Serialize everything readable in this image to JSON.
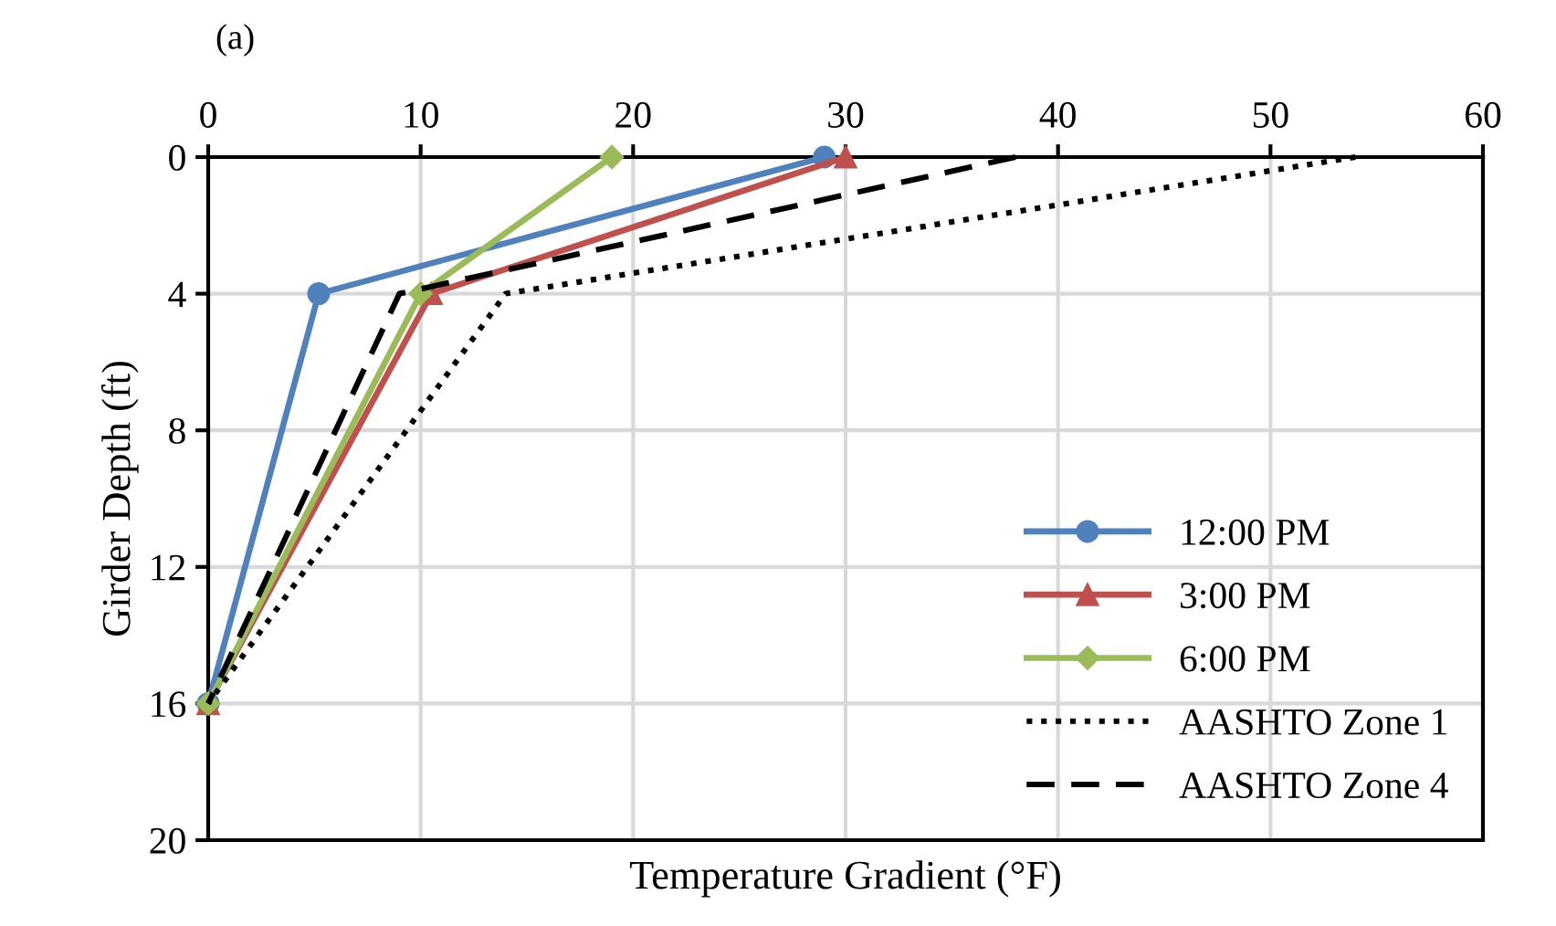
{
  "chart_data": {
    "type": "line",
    "xlabel": "Temperature Gradient (°F)",
    "ylabel": "Girder Depth (ft)",
    "annotations": [
      "(a)"
    ],
    "xlim": [
      0,
      60
    ],
    "xticks": [
      0,
      10,
      20,
      30,
      40,
      50,
      60
    ],
    "ylim": [
      20,
      0
    ],
    "yticks": [
      0,
      4,
      8,
      12,
      16,
      20
    ],
    "grid": true,
    "legend": "lower right",
    "series": [
      {
        "name": "12:00 PM",
        "color": "#4f81bd",
        "marker": "circle",
        "line_style": "solid",
        "x": [
          29,
          5.2,
          0
        ],
        "values": [
          0,
          4,
          16
        ]
      },
      {
        "name": "3:00 PM",
        "color": "#c0504d",
        "marker": "triangle",
        "line_style": "solid",
        "x": [
          30,
          10.5,
          0
        ],
        "values": [
          0,
          4,
          16
        ]
      },
      {
        "name": "6:00 PM",
        "color": "#9bbb59",
        "marker": "diamond",
        "line_style": "solid",
        "x": [
          19,
          10,
          0
        ],
        "values": [
          0,
          4,
          16
        ]
      },
      {
        "name": "AASHTO Zone 1",
        "color": "#000000",
        "marker": "none",
        "line_style": "dotted",
        "x": [
          54,
          14,
          0
        ],
        "values": [
          0,
          4,
          16
        ]
      },
      {
        "name": "AASHTO Zone 4",
        "color": "#000000",
        "marker": "none",
        "line_style": "dashed",
        "x": [
          38,
          9,
          0
        ],
        "values": [
          0,
          4,
          16
        ]
      }
    ]
  }
}
